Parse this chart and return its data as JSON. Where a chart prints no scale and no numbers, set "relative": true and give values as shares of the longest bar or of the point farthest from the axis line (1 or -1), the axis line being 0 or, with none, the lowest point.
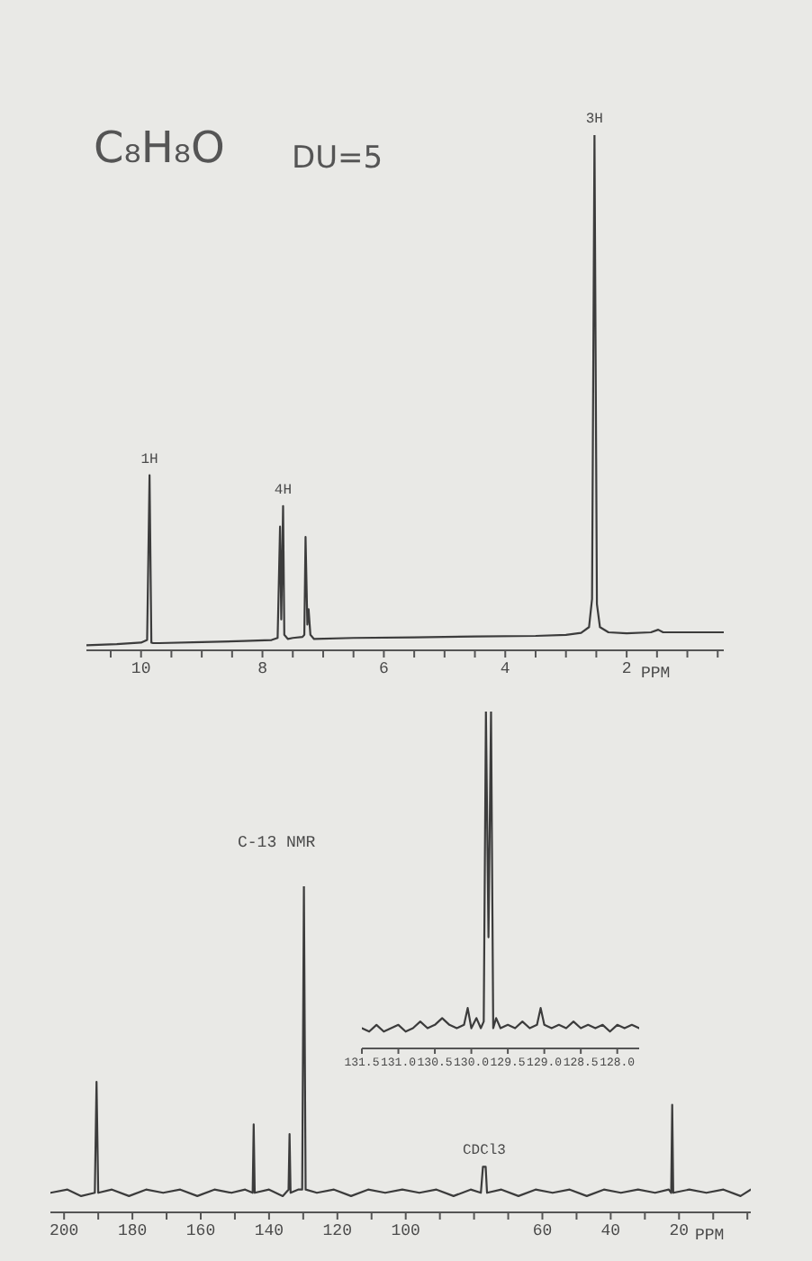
{
  "chart_data": [
    {
      "type": "line",
      "color": "#3c3c3c",
      "relative": true,
      "xlabel": "PPM",
      "xlim": [
        10.9,
        0.4
      ],
      "xticks": [
        {
          "value": 10.5,
          "label": null
        },
        10,
        {
          "value": 9.5,
          "label": null
        },
        {
          "value": 9,
          "label": null
        },
        {
          "value": 8.5,
          "label": null
        },
        8,
        {
          "value": 7.5,
          "label": null
        },
        {
          "value": 7,
          "label": null
        },
        {
          "value": 6.5,
          "label": null
        },
        6,
        {
          "value": 5.5,
          "label": null
        },
        {
          "value": 5,
          "label": null
        },
        {
          "value": 4.5,
          "label": null
        },
        4,
        {
          "value": 3.5,
          "label": null
        },
        {
          "value": 3,
          "label": null
        },
        {
          "value": 2.5,
          "label": null
        },
        2,
        {
          "value": 1.5,
          "label": null
        },
        {
          "value": 1,
          "label": null
        },
        {
          "value": 0.5,
          "label": null
        }
      ],
      "annotations": [
        "C₈H₈O",
        "DU=5",
        {
          "text": "1H",
          "x": 9.86,
          "y": 0.34
        },
        {
          "text": "4H",
          "x": 7.66,
          "y": 0.28
        },
        {
          "text": "3H",
          "x": 2.53,
          "y": 1
        }
      ],
      "x": [
        10.9,
        10.4,
        10.0,
        9.9,
        9.86,
        9.83,
        9.8,
        9.7,
        9.0,
        8.3,
        7.85,
        7.75,
        7.71,
        7.69,
        7.66,
        7.64,
        7.58,
        7.5,
        7.34,
        7.31,
        7.29,
        7.26,
        7.24,
        7.21,
        7.15,
        6.5,
        5.5,
        4.5,
        3.5,
        3.0,
        2.75,
        2.62,
        2.57,
        2.53,
        2.49,
        2.44,
        2.3,
        2.0,
        1.6,
        1.48,
        1.4,
        1.0,
        0.4
      ],
      "values": [
        0.01,
        0.012,
        0.015,
        0.02,
        0.34,
        0.015,
        0.014,
        0.014,
        0.016,
        0.018,
        0.02,
        0.024,
        0.24,
        0.06,
        0.28,
        0.03,
        0.022,
        0.024,
        0.026,
        0.03,
        0.22,
        0.05,
        0.08,
        0.03,
        0.022,
        0.024,
        0.025,
        0.027,
        0.028,
        0.03,
        0.034,
        0.045,
        0.1,
        1,
        0.09,
        0.045,
        0.035,
        0.033,
        0.035,
        0.04,
        0.035,
        0.035,
        0.035
      ]
    },
    {
      "type": "line",
      "color": "#3c3c3c",
      "relative": true,
      "xlim": [
        131.5,
        127.7
      ],
      "xticks": [
        131.5,
        {
          "value": 131,
          "label": "131.0"
        },
        130.5,
        {
          "value": 130,
          "label": "130.0"
        },
        129.5,
        {
          "value": 129,
          "label": "129.0"
        },
        128.5,
        {
          "value": 128,
          "label": "128.0"
        }
      ],
      "x": [
        131.5,
        131.4,
        131.3,
        131.2,
        131.1,
        131.0,
        130.9,
        130.8,
        130.7,
        130.6,
        130.5,
        130.4,
        130.3,
        130.2,
        130.1,
        130.05,
        130.0,
        129.93,
        129.87,
        129.83,
        129.8,
        129.765,
        129.73,
        129.7,
        129.66,
        129.6,
        129.5,
        129.4,
        129.3,
        129.2,
        129.1,
        129.05,
        129.0,
        128.9,
        128.8,
        128.7,
        128.6,
        128.5,
        128.4,
        128.3,
        128.2,
        128.1,
        128.0,
        127.9,
        127.8,
        127.7
      ],
      "values": [
        0.06,
        0.05,
        0.07,
        0.05,
        0.06,
        0.07,
        0.05,
        0.06,
        0.08,
        0.06,
        0.07,
        0.09,
        0.07,
        0.06,
        0.07,
        0.12,
        0.06,
        0.09,
        0.06,
        0.08,
        1,
        0.33,
        1,
        0.06,
        0.09,
        0.06,
        0.07,
        0.06,
        0.08,
        0.06,
        0.07,
        0.12,
        0.07,
        0.06,
        0.07,
        0.06,
        0.08,
        0.06,
        0.07,
        0.06,
        0.07,
        0.05,
        0.07,
        0.06,
        0.07,
        0.06
      ]
    },
    {
      "type": "line",
      "color": "#3c3c3c",
      "relative": true,
      "title": "C-13 NMR",
      "xlabel": "PPM",
      "xlim": [
        204,
        -1
      ],
      "xticks": [
        200,
        {
          "value": 190,
          "label": null
        },
        180,
        {
          "value": 170,
          "label": null
        },
        160,
        {
          "value": 150,
          "label": null
        },
        140,
        {
          "value": 130,
          "label": null
        },
        120,
        {
          "value": 110,
          "label": null
        },
        100,
        {
          "value": 90,
          "label": null
        },
        {
          "value": 80,
          "label": null
        },
        {
          "value": 70,
          "label": null
        },
        60,
        {
          "value": 50,
          "label": null
        },
        40,
        {
          "value": 30,
          "label": null
        },
        20,
        {
          "value": 10,
          "label": null
        },
        {
          "value": 0,
          "label": null
        }
      ],
      "annotations": [
        {
          "text": "CDCl3",
          "x": 77,
          "y": 0.14
        }
      ],
      "x": [
        204,
        199,
        195,
        191,
        190.5,
        190,
        186,
        181,
        176,
        171,
        166,
        161,
        156,
        151,
        147,
        144.8,
        144.5,
        144.2,
        140,
        136,
        134.3,
        134,
        133.7,
        131.5,
        130.3,
        129.8,
        129.3,
        126,
        121,
        116,
        111,
        106,
        101,
        96,
        91,
        86,
        81,
        78,
        77.4,
        77,
        76.6,
        76.2,
        72,
        67,
        62,
        57,
        52,
        47,
        42,
        37,
        32,
        27,
        23,
        22.3,
        22,
        21.7,
        17,
        12,
        7,
        2,
        -1
      ],
      "values": [
        0.06,
        0.07,
        0.05,
        0.06,
        0.4,
        0.06,
        0.07,
        0.05,
        0.07,
        0.06,
        0.07,
        0.05,
        0.07,
        0.06,
        0.07,
        0.06,
        0.27,
        0.06,
        0.07,
        0.05,
        0.07,
        0.24,
        0.06,
        0.07,
        0.07,
        1,
        0.07,
        0.06,
        0.07,
        0.05,
        0.07,
        0.06,
        0.07,
        0.06,
        0.07,
        0.05,
        0.07,
        0.06,
        0.14,
        0.14,
        0.14,
        0.06,
        0.07,
        0.05,
        0.07,
        0.06,
        0.07,
        0.05,
        0.07,
        0.06,
        0.07,
        0.06,
        0.07,
        0.06,
        0.33,
        0.06,
        0.07,
        0.06,
        0.07,
        0.05,
        0.07
      ]
    }
  ]
}
